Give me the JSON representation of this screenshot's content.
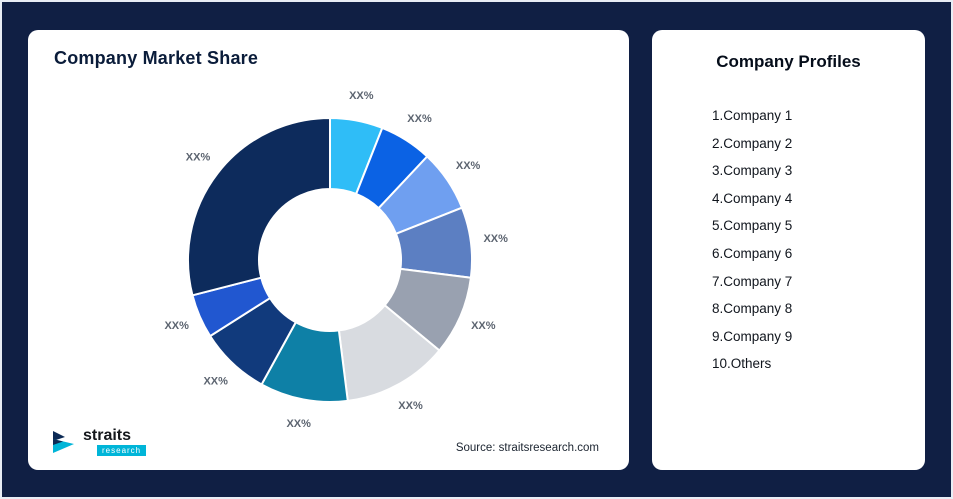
{
  "left_card": {
    "title": "Company Market Share",
    "source": "Source: straitsresearch.com",
    "logo": {
      "name": "straits",
      "sub": "research"
    }
  },
  "right_card": {
    "title": "Company Profiles",
    "items": [
      "1.Company 1",
      "2.Company 2",
      "3.Company 3",
      "4.Company 4",
      "5.Company 5",
      "6.Company 6",
      "7.Company 7",
      "8.Company 8",
      "9.Company 9",
      "10.Others"
    ]
  },
  "chart_data": {
    "type": "pie",
    "subtype": "donut",
    "title": "Company Market Share",
    "label_text": "XX%",
    "legend_position": "none",
    "start_angle_deg": 0,
    "direction": "clockwise",
    "segments": [
      {
        "name": "Company 1",
        "value": 6,
        "label": "XX%",
        "color": "#2fbdf7"
      },
      {
        "name": "Company 2",
        "value": 6,
        "label": "XX%",
        "color": "#0b62e4"
      },
      {
        "name": "Company 3",
        "value": 7,
        "label": "XX%",
        "color": "#6f9ff0"
      },
      {
        "name": "Company 4",
        "value": 8,
        "label": "XX%",
        "color": "#5c7fc2"
      },
      {
        "name": "Company 5",
        "value": 9,
        "label": "XX%",
        "color": "#99a1b0"
      },
      {
        "name": "Company 6",
        "value": 12,
        "label": "XX%",
        "color": "#d8dbe0"
      },
      {
        "name": "Company 7",
        "value": 10,
        "label": "XX%",
        "color": "#0e80a6"
      },
      {
        "name": "Company 8",
        "value": 8,
        "label": "XX%",
        "color": "#113a7c"
      },
      {
        "name": "Company 9",
        "value": 5,
        "label": "XX%",
        "color": "#2157d0"
      },
      {
        "name": "Others",
        "value": 29,
        "label": "XX%",
        "color": "#0d2b5c"
      }
    ]
  },
  "colors": {
    "background": "#101f44",
    "card": "#ffffff",
    "title_text": "#0a1c3a",
    "label_text": "#5c6470",
    "logo_accent": "#00b5d8"
  }
}
